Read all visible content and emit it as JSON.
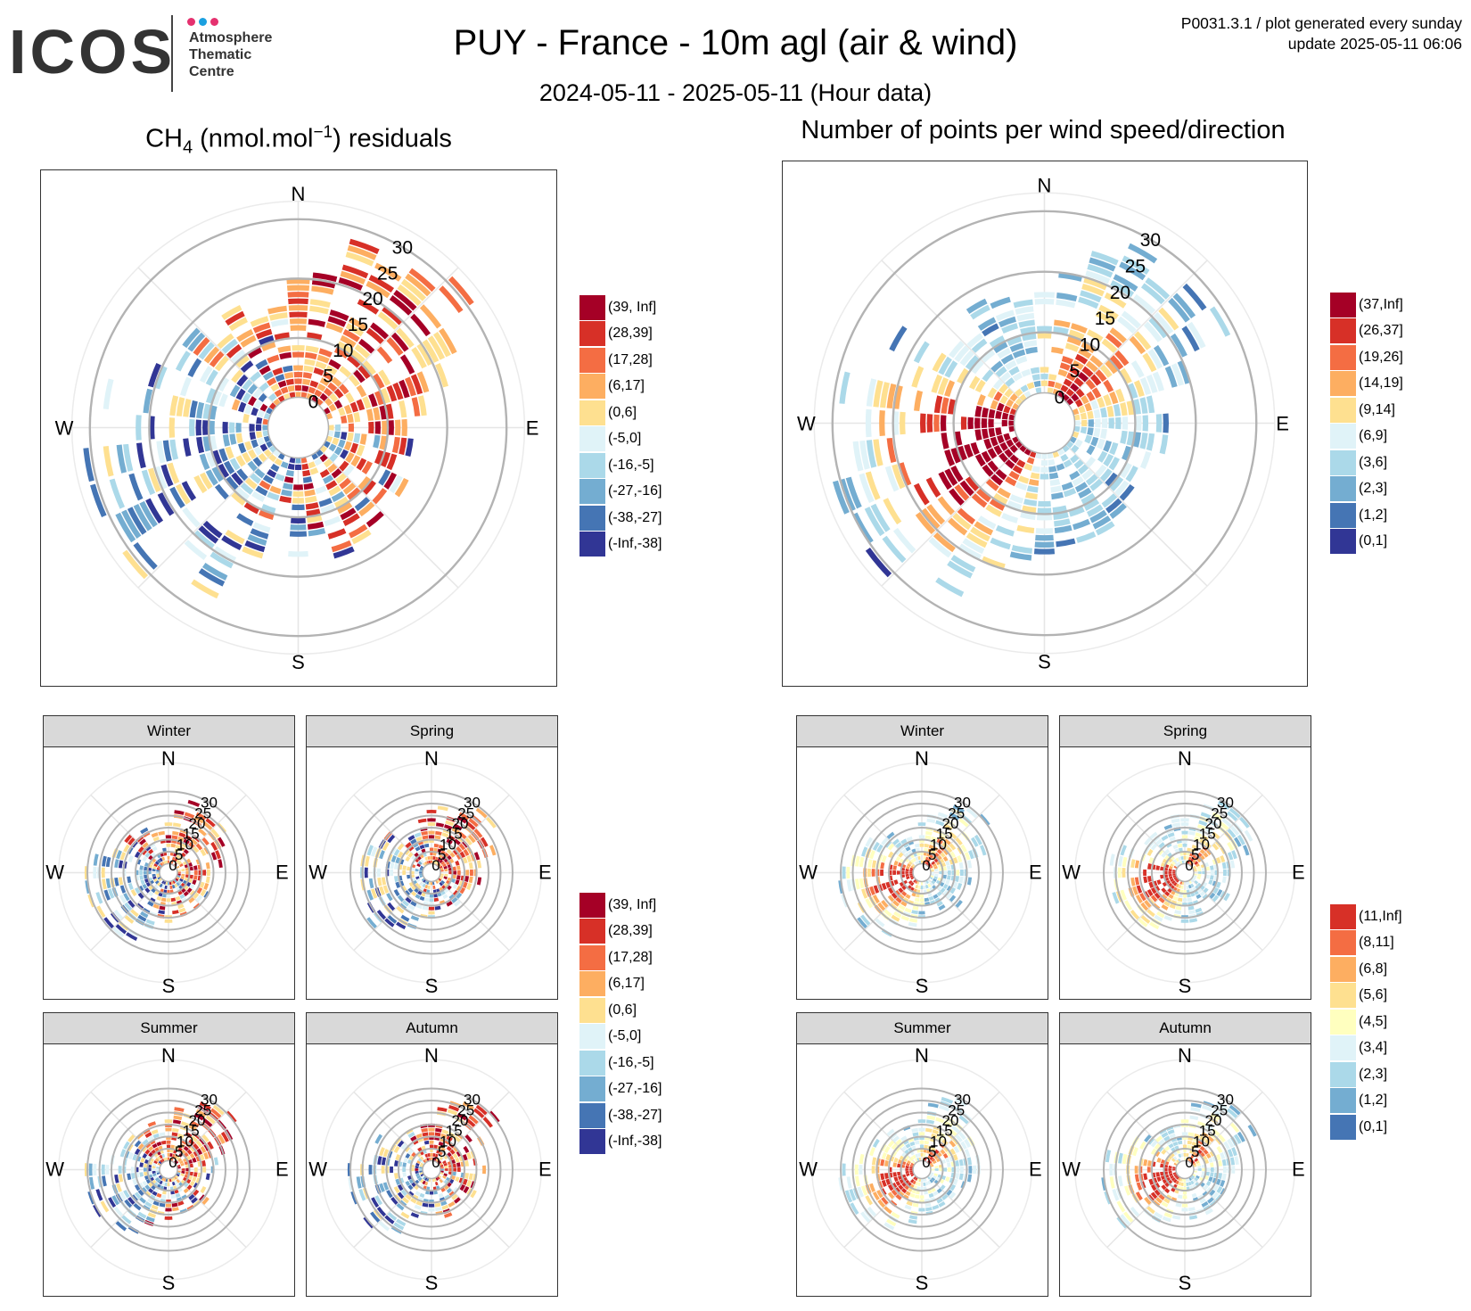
{
  "logo": {
    "wordmark": "ICOS",
    "lines": [
      "Atmosphere",
      "Thematic",
      "Centre"
    ],
    "dot_colors": [
      "#e5316f",
      "#1aa0e0",
      "#e5316f"
    ]
  },
  "header": {
    "title": "PUY - France - 10m agl (air & wind)",
    "subtitle": "2024-05-11 - 2025-05-11 (Hour data)",
    "meta_line1": "P0031.3.1 / plot generated every sunday",
    "meta_line2": "update  2025-05-11 06:06"
  },
  "chart_data": [
    {
      "id": "ch4",
      "type": "heatmap",
      "subtype": "polar wind rose (speed rings x direction sectors)",
      "title": "residuals",
      "species": "CH",
      "species_subscript": "4",
      "units_prefix": " (nmol.mol",
      "units_exp": "−1",
      "units_suffix": ")",
      "directions": [
        "N",
        "E",
        "S",
        "W"
      ],
      "radial_ticks": [
        "0",
        "5",
        "10",
        "15",
        "20",
        "25",
        "30"
      ],
      "radial_range": [
        0,
        30
      ],
      "legend": [
        {
          "label": "(39, Inf]",
          "color": "#a50026"
        },
        {
          "label": "(28,39]",
          "color": "#d73027"
        },
        {
          "label": "(17,28]",
          "color": "#f46d43"
        },
        {
          "label": "(6,17]",
          "color": "#fdae61"
        },
        {
          "label": "(0,6]",
          "color": "#fee090"
        },
        {
          "label": "(-5,0]",
          "color": "#e0f3f8"
        },
        {
          "label": "(-16,-5]",
          "color": "#abd9e9"
        },
        {
          "label": "(-27,-16]",
          "color": "#74add1"
        },
        {
          "label": "(-38,-27]",
          "color": "#4575b4"
        },
        {
          "label": "(-Inf,-38]",
          "color": "#313695"
        }
      ],
      "seasons": [
        "Winter",
        "Spring",
        "Summer",
        "Autumn"
      ]
    },
    {
      "id": "points",
      "type": "heatmap",
      "subtype": "polar wind rose (speed rings x direction sectors)",
      "title": "Number of points per wind speed/direction",
      "directions": [
        "N",
        "E",
        "S",
        "W"
      ],
      "radial_ticks": [
        "0",
        "5",
        "10",
        "15",
        "20",
        "25",
        "30"
      ],
      "radial_range": [
        0,
        30
      ],
      "legend": [
        {
          "label": "(37,Inf]",
          "color": "#a50026"
        },
        {
          "label": "(26,37]",
          "color": "#d73027"
        },
        {
          "label": "(19,26]",
          "color": "#f46d43"
        },
        {
          "label": "(14,19]",
          "color": "#fdae61"
        },
        {
          "label": "(9,14]",
          "color": "#fee090"
        },
        {
          "label": "(6,9]",
          "color": "#e0f3f8"
        },
        {
          "label": "(3,6]",
          "color": "#abd9e9"
        },
        {
          "label": "(2,3]",
          "color": "#74add1"
        },
        {
          "label": "(1,2]",
          "color": "#4575b4"
        },
        {
          "label": "(0,1]",
          "color": "#313695"
        }
      ],
      "seasons": [
        "Winter",
        "Spring",
        "Summer",
        "Autumn"
      ],
      "season_legend": [
        {
          "label": "(11,Inf]",
          "color": "#d73027"
        },
        {
          "label": "(8,11]",
          "color": "#f46d43"
        },
        {
          "label": "(6,8]",
          "color": "#fdae61"
        },
        {
          "label": "(5,6]",
          "color": "#fee090"
        },
        {
          "label": "(4,5]",
          "color": "#ffffbf"
        },
        {
          "label": "(3,4]",
          "color": "#e0f3f8"
        },
        {
          "label": "(2,3]",
          "color": "#abd9e9"
        },
        {
          "label": "(1,2]",
          "color": "#74add1"
        },
        {
          "label": "(0,1]",
          "color": "#4575b4"
        }
      ]
    }
  ]
}
